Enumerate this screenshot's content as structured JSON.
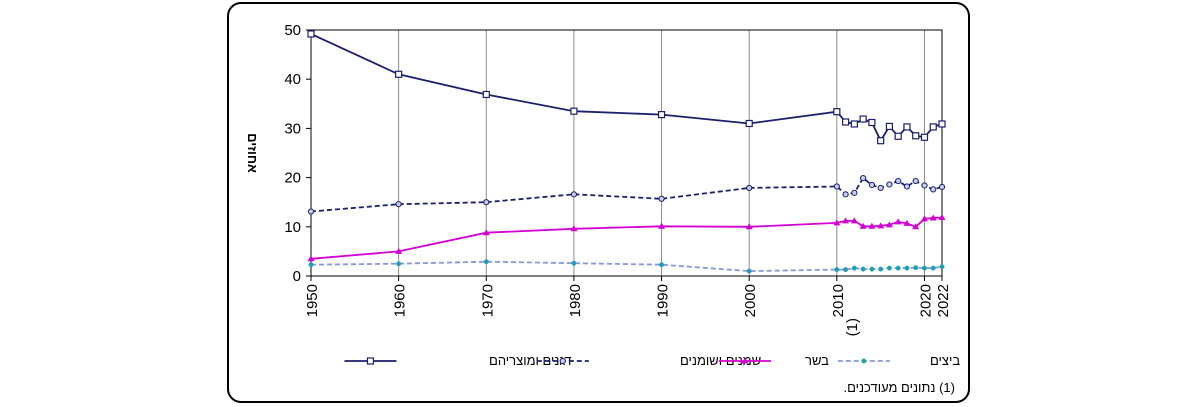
{
  "chart_data": {
    "type": "line",
    "ylabel": "אחוזים",
    "ylim": [
      0,
      50
    ],
    "yticks": [
      "0",
      "10",
      "20",
      "30",
      "40",
      "50"
    ],
    "x_tick_values": [
      1950,
      1960,
      1970,
      1980,
      1990,
      2000,
      2010,
      2020,
      2022
    ],
    "x_tick_labels": [
      "1950",
      "1960",
      "1970",
      "1980",
      "1990",
      "2000",
      "2010",
      "2020",
      "2022"
    ],
    "x_tick_note": "(1)",
    "grid": "vertical",
    "legend_position": "bottom",
    "x": [
      1950,
      1960,
      1970,
      1980,
      1990,
      2000,
      2010,
      2011,
      2012,
      2013,
      2014,
      2015,
      2016,
      2017,
      2018,
      2019,
      2020,
      2021,
      2022
    ],
    "series": [
      {
        "name": "דגנים ומוצריהם",
        "color": "#1a1f6e",
        "style": "solid",
        "marker": "square",
        "values": [
          49.2,
          41.0,
          36.9,
          33.5,
          32.8,
          31.0,
          33.4,
          31.3,
          30.9,
          31.9,
          31.2,
          27.5,
          30.4,
          28.4,
          30.3,
          28.5,
          28.2,
          30.3,
          30.9
        ]
      },
      {
        "name": "שמנים ושומנים",
        "color": "#1a1f6e",
        "style": "dashed",
        "marker": "circle",
        "values": [
          13.1,
          14.6,
          15.0,
          16.6,
          15.7,
          17.9,
          18.2,
          16.6,
          16.9,
          19.9,
          18.5,
          17.9,
          18.6,
          19.3,
          18.2,
          19.3,
          18.4,
          17.6,
          18.1
        ]
      },
      {
        "name": "בשר",
        "color": "#d400d4",
        "style": "solid",
        "marker": "triangle",
        "values": [
          3.5,
          5.0,
          8.8,
          9.6,
          10.1,
          10.0,
          10.8,
          11.2,
          11.2,
          10.1,
          10.1,
          10.2,
          10.4,
          11.0,
          10.7,
          10.0,
          11.6,
          11.8,
          11.9
        ]
      },
      {
        "name": "ביצים",
        "color": "#8896dc",
        "style": "dashed",
        "marker": "dot",
        "values": [
          2.3,
          2.5,
          2.9,
          2.6,
          2.3,
          1.0,
          1.3,
          1.3,
          1.6,
          1.4,
          1.4,
          1.4,
          1.6,
          1.6,
          1.6,
          1.7,
          1.6,
          1.6,
          1.9
        ]
      }
    ],
    "footnote": "(1) נתונים מעודכנים."
  }
}
